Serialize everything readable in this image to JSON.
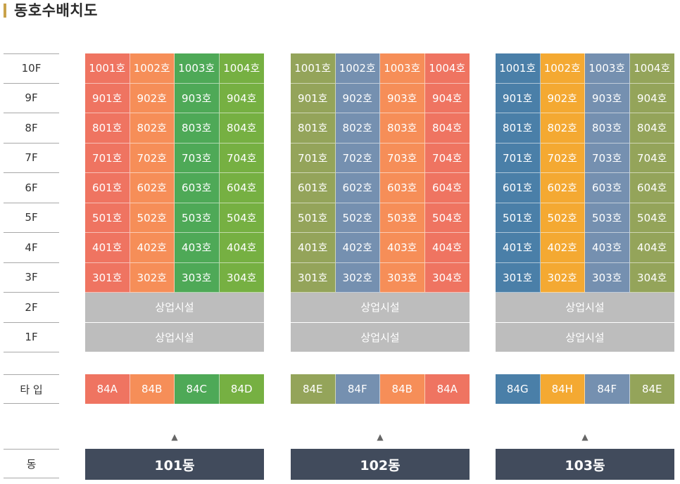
{
  "title": "동호수배치도",
  "floors": [
    "10F",
    "9F",
    "8F",
    "7F",
    "6F",
    "5F",
    "4F",
    "3F",
    "2F",
    "1F"
  ],
  "type_label": "타 입",
  "dong_label": "동",
  "arrow_glyph": "▲",
  "colors": {
    "red": "#ef7461",
    "orange": "#f68e58",
    "green": "#4ea957",
    "lime": "#76b042",
    "olive": "#94a45a",
    "slate": "#7590b0",
    "blue": "#4a7fa8",
    "yellow": "#f4a932",
    "gray": "#bdbdbd",
    "navy": "#414b5c"
  },
  "buildings": [
    {
      "dong": "101동",
      "unit_colors": [
        "red",
        "orange",
        "green",
        "lime"
      ],
      "units": [
        [
          "1001호",
          "1002호",
          "1003호",
          "1004호"
        ],
        [
          "901호",
          "902호",
          "903호",
          "904호"
        ],
        [
          "801호",
          "802호",
          "803호",
          "804호"
        ],
        [
          "701호",
          "702호",
          "703호",
          "704호"
        ],
        [
          "601호",
          "602호",
          "603호",
          "604호"
        ],
        [
          "501호",
          "502호",
          "503호",
          "504호"
        ],
        [
          "401호",
          "402호",
          "403호",
          "404호"
        ],
        [
          "301호",
          "302호",
          "303호",
          "304호"
        ]
      ],
      "commercial": [
        "상업시설",
        "상업시설"
      ],
      "types": [
        "84A",
        "84B",
        "84C",
        "84D"
      ]
    },
    {
      "dong": "102동",
      "unit_colors": [
        "olive",
        "slate",
        "orange",
        "red"
      ],
      "units": [
        [
          "1001호",
          "1002호",
          "1003호",
          "1004호"
        ],
        [
          "901호",
          "902호",
          "903호",
          "904호"
        ],
        [
          "801호",
          "802호",
          "803호",
          "804호"
        ],
        [
          "701호",
          "702호",
          "703호",
          "704호"
        ],
        [
          "601호",
          "602호",
          "603호",
          "604호"
        ],
        [
          "501호",
          "502호",
          "503호",
          "504호"
        ],
        [
          "401호",
          "402호",
          "403호",
          "404호"
        ],
        [
          "301호",
          "302호",
          "303호",
          "304호"
        ]
      ],
      "commercial": [
        "상업시설",
        "상업시설"
      ],
      "types": [
        "84E",
        "84F",
        "84B",
        "84A"
      ]
    },
    {
      "dong": "103동",
      "unit_colors": [
        "blue",
        "yellow",
        "slate",
        "olive"
      ],
      "units": [
        [
          "1001호",
          "1002호",
          "1003호",
          "1004호"
        ],
        [
          "901호",
          "902호",
          "903호",
          "904호"
        ],
        [
          "801호",
          "802호",
          "803호",
          "804호"
        ],
        [
          "701호",
          "702호",
          "703호",
          "704호"
        ],
        [
          "601호",
          "602호",
          "603호",
          "604호"
        ],
        [
          "501호",
          "502호",
          "503호",
          "504호"
        ],
        [
          "401호",
          "402호",
          "403호",
          "404호"
        ],
        [
          "301호",
          "302호",
          "303호",
          "304호"
        ]
      ],
      "commercial": [
        "상업시설",
        "상업시설"
      ],
      "types": [
        "84G",
        "84H",
        "84F",
        "84E"
      ]
    }
  ]
}
